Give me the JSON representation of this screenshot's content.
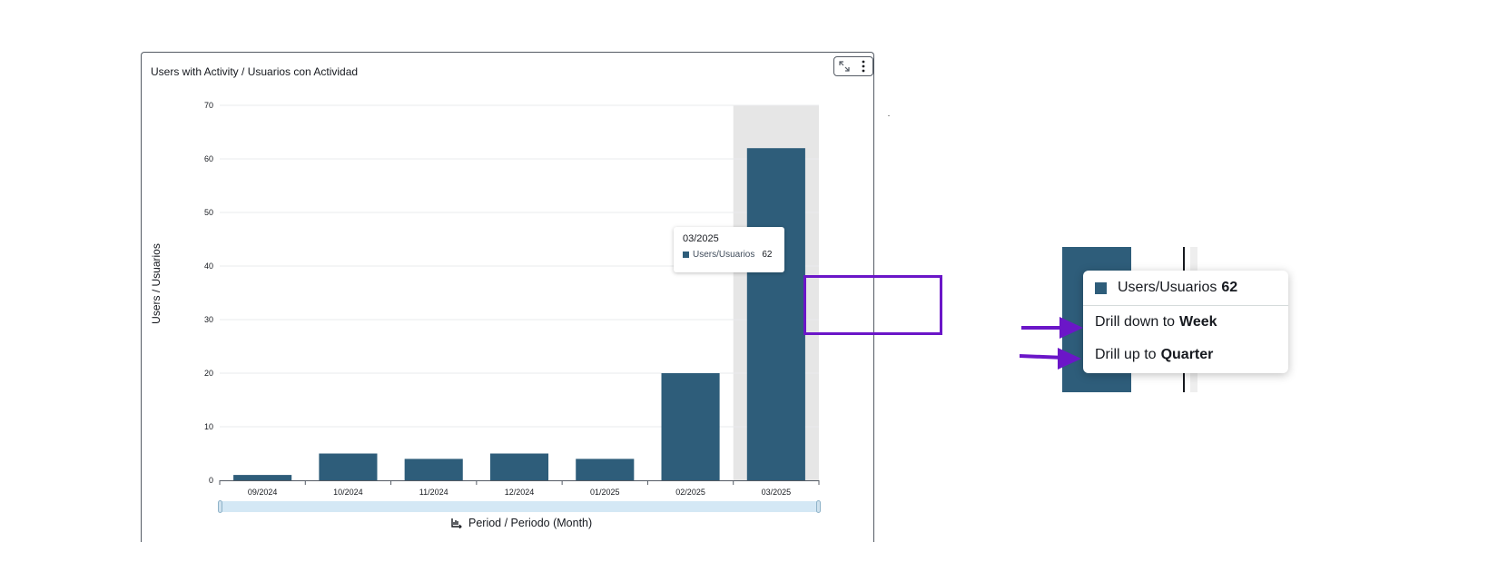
{
  "card": {
    "title": "Users with Activity / Usuarios con Actividad",
    "expand_label": "expand",
    "menu_label": "more options"
  },
  "chart_data": {
    "type": "bar",
    "title": "Users with Activity / Usuarios con Actividad",
    "categories": [
      "09/2024",
      "10/2024",
      "11/2024",
      "12/2024",
      "01/2025",
      "02/2025",
      "03/2025"
    ],
    "series": [
      {
        "name": "Users/Usuarios",
        "values": [
          1,
          5,
          4,
          5,
          4,
          20,
          62
        ]
      }
    ],
    "xlabel": "Period / Periodo (Month)",
    "ylabel": "Users / Usuarios",
    "ylim": [
      0,
      70
    ],
    "yticks": [
      0,
      10,
      20,
      30,
      40,
      50,
      60,
      70
    ],
    "highlighted_category": "03/2025",
    "grid": true,
    "bar_color": "#2e5d7a",
    "highlight_color": "#e6e6e6"
  },
  "tooltip": {
    "period": "03/2025",
    "series_label": "Users/Usuarios",
    "value": "62"
  },
  "context_menu": {
    "series_label": "Users/Usuarios",
    "value": "62",
    "drill_down_prefix": "Drill down to",
    "drill_down_target": "Week",
    "drill_up_prefix": "Drill up to",
    "drill_up_target": "Quarter"
  },
  "colors": {
    "annotation": "#6b16c8",
    "bar": "#2e5d7a"
  }
}
